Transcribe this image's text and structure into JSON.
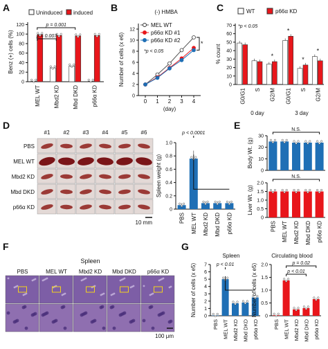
{
  "panels": {
    "A": "A",
    "B": "B",
    "C": "C",
    "D": "D",
    "E": "E",
    "F": "F",
    "G": "G"
  },
  "colors": {
    "red": "#e8161b",
    "blue": "#1f6fb5",
    "white": "#ffffff",
    "grey": "#777777"
  },
  "chart_data": [
    {
      "panel": "A",
      "type": "bar",
      "ylabel": "Benz (+) cells (%)",
      "ylim": [
        0,
        125
      ],
      "yticks": [
        "0",
        "20",
        "40",
        "60",
        "80",
        "100",
        "120"
      ],
      "categories": [
        "MEL WT",
        "Mbd2 KD",
        "Mbd DKD",
        "p66α KD"
      ],
      "legend": [
        "Uninduced",
        "induced"
      ],
      "series": [
        {
          "name": "Uninduced",
          "values": [
            1,
            29,
            33,
            1
          ]
        },
        {
          "name": "induced",
          "values": [
            99,
            97,
            96,
            97
          ]
        }
      ],
      "annotations": [
        "p = 0.001",
        "p = 0.007"
      ]
    },
    {
      "panel": "B",
      "type": "line",
      "title": "(-) HMBA",
      "xlabel": "(day)",
      "ylabel": "Number of cells (x e6)",
      "x": [
        0,
        1,
        2,
        3,
        4
      ],
      "ylim": [
        0,
        13
      ],
      "yticks": [
        "0",
        "2",
        "4",
        "6",
        "8",
        "10",
        "12"
      ],
      "series": [
        {
          "name": "MEL WT",
          "values": [
            2,
            3.8,
            5.8,
            8.2,
            10.5
          ]
        },
        {
          "name": "p66α KD #1",
          "values": [
            2,
            3.3,
            5.0,
            6.7,
            8.6
          ]
        },
        {
          "name": "p66α KD #2",
          "values": [
            2,
            3.2,
            4.9,
            6.4,
            8.2
          ]
        }
      ],
      "annotations": [
        "*p < 0.05",
        "*"
      ]
    },
    {
      "panel": "C",
      "type": "bar",
      "ylabel": "% count",
      "ylim": [
        0,
        72
      ],
      "yticks": [
        "0",
        "10",
        "20",
        "30",
        "40",
        "50",
        "60",
        "70"
      ],
      "categories": [
        "G0/G1",
        "S",
        "G2/M",
        "G0/G1",
        "S",
        "G2/M"
      ],
      "groups": [
        "0 day",
        "3 day"
      ],
      "legend": [
        "WT",
        "p66α KD"
      ],
      "series": [
        {
          "name": "WT",
          "values": [
            49,
            28,
            24,
            52,
            19,
            33
          ]
        },
        {
          "name": "p66α KD",
          "values": [
            47,
            27,
            27,
            57,
            23,
            28
          ]
        }
      ],
      "annotations": [
        "*p < 0.05",
        "*",
        "*",
        "*",
        "*"
      ]
    },
    {
      "panel": "D",
      "type": "bar",
      "ylabel": "Spleen weight (g)",
      "ylim": [
        0,
        1.0
      ],
      "yticks": [
        "0",
        "0.2",
        "0.4",
        "0.6",
        "0.8",
        "1.0"
      ],
      "categories": [
        "PBS",
        "MEL WT",
        "Mbd2 KD",
        "Mbd DKD",
        "p66α KD"
      ],
      "values": [
        0.06,
        0.76,
        0.09,
        0.09,
        0.09
      ],
      "annotations": [
        "p < 0.0001"
      ]
    },
    {
      "panel": "E-top",
      "type": "bar",
      "ylabel": "Body Wt. (g)",
      "ylim": [
        0,
        30
      ],
      "yticks": [
        "0",
        "10",
        "20",
        "30"
      ],
      "categories": [
        "PBS",
        "MEL WT",
        "Mbd2 KD",
        "Mbd DKD",
        "p66α KD"
      ],
      "values": [
        25,
        25,
        24,
        24,
        24
      ],
      "annotations": [
        "N.S."
      ]
    },
    {
      "panel": "E-bottom",
      "type": "bar",
      "ylabel": "Liver Wt. (g)",
      "ylim": [
        0,
        2.0
      ],
      "yticks": [
        "0",
        "0.5",
        "1.0",
        "1.5",
        "2.0"
      ],
      "categories": [
        "PBS",
        "MEL WT",
        "Mbd2 KD",
        "Mbd DKD",
        "p66α KD"
      ],
      "values": [
        1.5,
        1.5,
        1.5,
        1.5,
        1.5
      ],
      "annotations": [
        "N.S."
      ]
    },
    {
      "panel": "G-spleen",
      "type": "bar",
      "title": "Spleen",
      "ylabel": "Number of cells (x e5)",
      "ylim": [
        0,
        7
      ],
      "yticks": [
        "0",
        "1",
        "2",
        "3",
        "4",
        "5",
        "6",
        "7"
      ],
      "categories": [
        "PBS",
        "MEL WT",
        "Mbd2 KD",
        "Mbd DKD",
        "p66α KD"
      ],
      "values": [
        0.05,
        5.0,
        1.7,
        1.8,
        2.5
      ],
      "annotations": [
        "p < 0.01"
      ]
    },
    {
      "panel": "G-blood",
      "type": "bar",
      "title": "Circulating blood",
      "ylabel": "Number of cells (x e5)",
      "ylim": [
        0,
        2.0
      ],
      "yticks": [
        "0",
        "0.5",
        "1.0",
        "1.5",
        "2.0"
      ],
      "categories": [
        "PBS",
        "MEL WT",
        "Mbd2 KD",
        "Mbd DKD",
        "p66α KD"
      ],
      "values": [
        0.02,
        1.38,
        0.25,
        0.3,
        0.65
      ],
      "annotations": [
        "p = 0.02",
        "p < 0.01"
      ]
    }
  ],
  "photos_D": {
    "col_labels": [
      "#1",
      "#2",
      "#3",
      "#4",
      "#5",
      "#6"
    ],
    "row_labels": [
      "PBS",
      "MEL WT",
      "Mbd2 KD",
      "Mbd DKD",
      "p66α KD"
    ],
    "scale": "10 mm"
  },
  "photos_F": {
    "title": "Spleen",
    "col_labels": [
      "PBS",
      "MEL WT",
      "Mbd2 KD",
      "Mbd DKD",
      "p66α KD"
    ],
    "scale": "100 μm"
  }
}
